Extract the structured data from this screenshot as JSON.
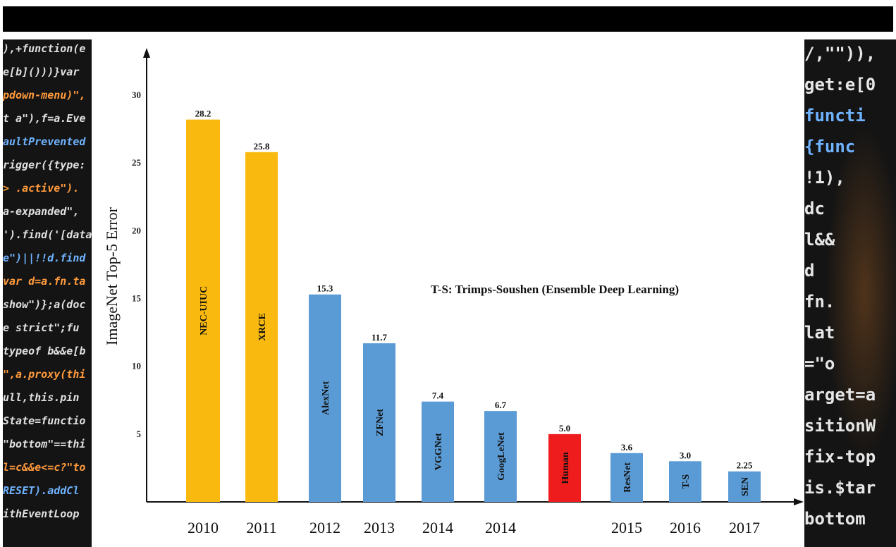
{
  "chart_data": {
    "type": "bar",
    "ylabel": "ImageNet Top-5 Error",
    "yticks": [
      5,
      10,
      15,
      20,
      25,
      30
    ],
    "ylim": [
      0,
      30
    ],
    "annotation": "T-S: Trimps-Soushen (Ensemble Deep Learning)",
    "bars": [
      {
        "name": "NEC-UIUC",
        "year": "2010",
        "value": 28.2,
        "value_label": "28.2",
        "color": "#F9B90E"
      },
      {
        "name": "XRCE",
        "year": "2011",
        "value": 25.8,
        "value_label": "25.8",
        "color": "#F9B90E"
      },
      {
        "name": "AlexNet",
        "year": "2012",
        "value": 15.3,
        "value_label": "15.3",
        "color": "#5B9BD5"
      },
      {
        "name": "ZFNet",
        "year": "2013",
        "value": 11.7,
        "value_label": "11.7",
        "color": "#5B9BD5"
      },
      {
        "name": "VGGNet",
        "year": "2014",
        "value": 7.4,
        "value_label": "7.4",
        "color": "#5B9BD5"
      },
      {
        "name": "GoogLeNet",
        "year": "2014",
        "value": 6.7,
        "value_label": "6.7",
        "color": "#5B9BD5"
      },
      {
        "name": "Human",
        "year": "",
        "value": 5.0,
        "value_label": "5.0",
        "color": "#EE1C1C"
      },
      {
        "name": "ResNet",
        "year": "2015",
        "value": 3.6,
        "value_label": "3.6",
        "color": "#5B9BD5"
      },
      {
        "name": "T-S",
        "year": "2016",
        "value": 3.0,
        "value_label": "3.0",
        "color": "#5B9BD5"
      },
      {
        "name": "SEN",
        "year": "2017",
        "value": 2.25,
        "value_label": "2.25",
        "color": "#5B9BD5"
      }
    ]
  },
  "background_code": {
    "left": [
      "),+function(e",
      "e[b]()))}var",
      "pdown-menu)\",",
      "t a\"),f=a.Eve",
      "aultPrevented",
      "rigger({type:",
      "> .active\").",
      "a-expanded\",",
      "').find('[data",
      "e\")||!!d.find",
      "var d=a.fn.ta",
      "show\")};a(doc",
      "e strict\";fu",
      "typeof b&&e[b",
      "\",a.proxy(thi",
      "ull,this.pin",
      "State=functio",
      "\"bottom\"==thi",
      "l=c&&e<=c?\"to",
      "RESET).addCl",
      "ithEventLoop"
    ],
    "right": [
      "/,\"\")),",
      "get:e[0",
      "functi",
      "{func",
      "!1),",
      "dc",
      "l&&",
      "d",
      "fn.",
      "lat",
      "=\"o",
      "arget=a",
      "sitionW",
      "fix-top",
      "is.$tar",
      "bottom"
    ]
  }
}
